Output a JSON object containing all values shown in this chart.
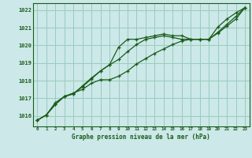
{
  "title": "Graphe pression niveau de la mer (hPa)",
  "bg_color": "#cce8e8",
  "grid_color": "#99ccbb",
  "line_color": "#1a5c1a",
  "xlim": [
    -0.5,
    23.5
  ],
  "ylim": [
    1015.4,
    1022.4
  ],
  "yticks": [
    1016,
    1017,
    1018,
    1019,
    1020,
    1021,
    1022
  ],
  "xticks": [
    0,
    1,
    2,
    3,
    4,
    5,
    6,
    7,
    8,
    9,
    10,
    11,
    12,
    13,
    14,
    15,
    16,
    17,
    18,
    19,
    20,
    21,
    22,
    23
  ],
  "series1": [
    1015.75,
    1016.05,
    1016.65,
    1017.1,
    1017.25,
    1017.7,
    1018.15,
    1018.55,
    1018.9,
    1019.9,
    1020.35,
    1020.35,
    1020.45,
    1020.55,
    1020.65,
    1020.55,
    1020.55,
    1020.35,
    1020.35,
    1020.35,
    1021.05,
    1021.5,
    1021.85,
    1022.15
  ],
  "series2": [
    1015.75,
    1016.05,
    1016.65,
    1017.1,
    1017.25,
    1017.65,
    1018.1,
    1018.55,
    1018.9,
    1019.2,
    1019.65,
    1020.05,
    1020.35,
    1020.45,
    1020.55,
    1020.45,
    1020.35,
    1020.35,
    1020.35,
    1020.35,
    1020.75,
    1021.2,
    1021.65,
    1022.15
  ],
  "series3": [
    1015.75,
    1016.05,
    1016.75,
    1017.1,
    1017.3,
    1017.5,
    1017.85,
    1018.05,
    1018.05,
    1018.25,
    1018.55,
    1018.95,
    1019.25,
    1019.55,
    1019.8,
    1020.05,
    1020.25,
    1020.35,
    1020.35,
    1020.35,
    1020.7,
    1021.1,
    1021.5,
    1022.15
  ]
}
